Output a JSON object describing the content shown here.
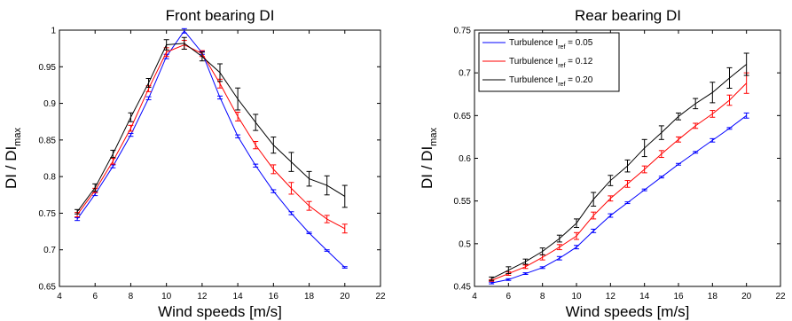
{
  "chart_data": [
    {
      "type": "line",
      "title": "Front bearing DI",
      "xlabel": "Wind speeds [m/s]",
      "ylabel": {
        "main": "DI / DI",
        "sub": "max"
      },
      "xlim": [
        4,
        22
      ],
      "ylim": [
        0.65,
        1.0
      ],
      "xticks": [
        "4",
        "6",
        "8",
        "10",
        "12",
        "14",
        "16",
        "18",
        "20",
        "22"
      ],
      "yticks": [
        "0.65",
        "0.7",
        "0.75",
        "0.8",
        "0.85",
        "0.9",
        "0.95",
        "1"
      ],
      "x": [
        5,
        6,
        7,
        8,
        9,
        10,
        11,
        12,
        13,
        14,
        15,
        16,
        17,
        18,
        19,
        20
      ],
      "series": [
        {
          "color": "#0000ff",
          "values": [
            0.742,
            0.776,
            0.814,
            0.857,
            0.907,
            0.964,
            0.999,
            0.969,
            0.908,
            0.855,
            0.815,
            0.78,
            0.75,
            0.723,
            0.699,
            0.676
          ],
          "errors": [
            0.002,
            0.002,
            0.002,
            0.002,
            0.002,
            0.003,
            0.003,
            0.002,
            0.002,
            0.002,
            0.002,
            0.002,
            0.002,
            0.001,
            0.001,
            0.001
          ]
        },
        {
          "color": "#ff0000",
          "values": [
            0.748,
            0.781,
            0.821,
            0.866,
            0.92,
            0.97,
            0.98,
            0.968,
            0.927,
            0.882,
            0.843,
            0.81,
            0.784,
            0.76,
            0.742,
            0.729
          ],
          "errors": [
            0.003,
            0.003,
            0.004,
            0.004,
            0.004,
            0.006,
            0.006,
            0.004,
            0.006,
            0.006,
            0.005,
            0.006,
            0.008,
            0.006,
            0.005,
            0.006
          ]
        },
        {
          "color": "#000000",
          "values": [
            0.752,
            0.785,
            0.831,
            0.881,
            0.928,
            0.98,
            0.982,
            0.964,
            0.942,
            0.906,
            0.874,
            0.843,
            0.82,
            0.797,
            0.788,
            0.773
          ],
          "errors": [
            0.003,
            0.005,
            0.005,
            0.006,
            0.006,
            0.007,
            0.008,
            0.006,
            0.012,
            0.015,
            0.011,
            0.011,
            0.013,
            0.01,
            0.013,
            0.015
          ]
        }
      ]
    },
    {
      "type": "line",
      "title": "Rear bearing DI",
      "xlabel": "Wind speeds [m/s]",
      "ylabel": {
        "main": "DI / DI",
        "sub": "max"
      },
      "xlim": [
        4,
        22
      ],
      "ylim": [
        0.45,
        0.75
      ],
      "xticks": [
        "4",
        "6",
        "8",
        "10",
        "12",
        "14",
        "16",
        "18",
        "20",
        "22"
      ],
      "yticks": [
        "0.45",
        "0.5",
        "0.55",
        "0.6",
        "0.65",
        "0.7",
        "0.75"
      ],
      "legend_position": "top-left",
      "x": [
        5,
        6,
        7,
        8,
        9,
        10,
        11,
        12,
        13,
        14,
        15,
        16,
        17,
        18,
        19,
        20
      ],
      "series": [
        {
          "name": "Turbulence I",
          "name_sub": "ref",
          "name_suffix": " = 0.05",
          "color": "#0000ff",
          "values": [
            0.454,
            0.458,
            0.465,
            0.472,
            0.483,
            0.496,
            0.515,
            0.533,
            0.548,
            0.563,
            0.578,
            0.593,
            0.607,
            0.621,
            0.635,
            0.65
          ],
          "errors": [
            0.001,
            0.001,
            0.001,
            0.001,
            0.002,
            0.002,
            0.002,
            0.002,
            0.001,
            0.001,
            0.001,
            0.001,
            0.001,
            0.002,
            0.001,
            0.003
          ]
        },
        {
          "name": "Turbulence I",
          "name_sub": "ref",
          "name_suffix": " = 0.12",
          "color": "#ff0000",
          "values": [
            0.457,
            0.465,
            0.473,
            0.484,
            0.496,
            0.509,
            0.533,
            0.553,
            0.57,
            0.587,
            0.605,
            0.622,
            0.638,
            0.652,
            0.668,
            0.688
          ],
          "errors": [
            0.001,
            0.002,
            0.002,
            0.003,
            0.003,
            0.004,
            0.004,
            0.003,
            0.004,
            0.004,
            0.004,
            0.003,
            0.003,
            0.004,
            0.006,
            0.012
          ]
        },
        {
          "name": "Turbulence I",
          "name_sub": "ref",
          "name_suffix": " = 0.20",
          "color": "#000000",
          "values": [
            0.459,
            0.469,
            0.479,
            0.491,
            0.506,
            0.524,
            0.552,
            0.574,
            0.591,
            0.612,
            0.63,
            0.649,
            0.664,
            0.677,
            0.694,
            0.71
          ],
          "errors": [
            0.002,
            0.004,
            0.003,
            0.004,
            0.004,
            0.005,
            0.008,
            0.006,
            0.007,
            0.01,
            0.008,
            0.004,
            0.006,
            0.012,
            0.012,
            0.013
          ]
        }
      ]
    }
  ]
}
